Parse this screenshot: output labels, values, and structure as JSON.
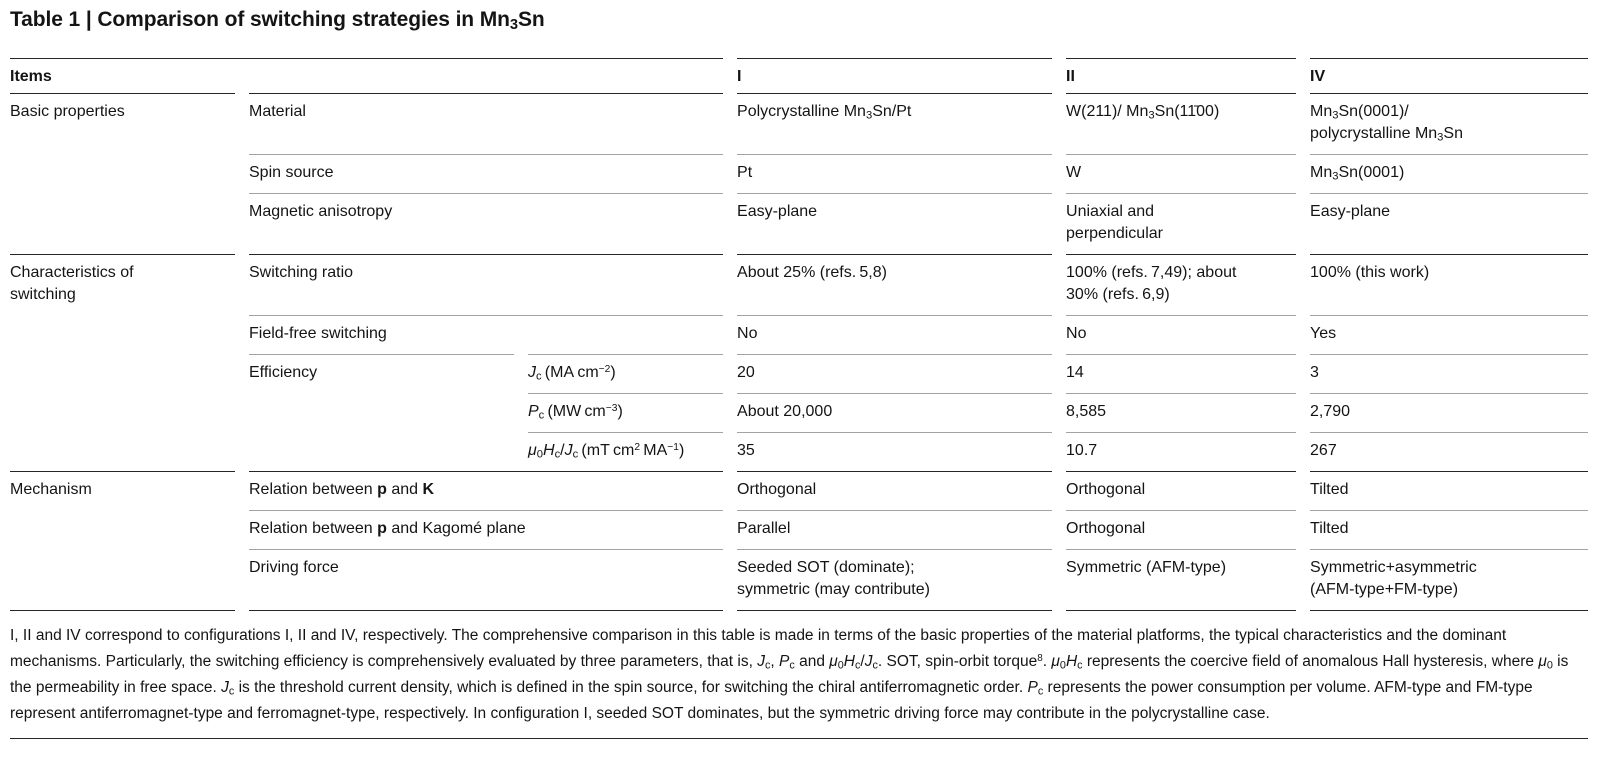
{
  "title": {
    "html": "Table 1 | Comparison of switching strategies in Mn<sub>3</sub>Sn"
  },
  "table": {
    "header": {
      "items": "Items",
      "col_I": "I",
      "col_II": "II",
      "col_IV": "IV"
    },
    "rows": [
      {
        "group": "Basic properties",
        "label": "Material",
        "values": [
          "Polycrystalline Mn<sub>3</sub>Sn/Pt",
          "W(211)/ Mn<sub>3</sub>Sn(11̄00)",
          "Mn<sub>3</sub>Sn(0001)/<br>polycrystalline Mn<sub>3</sub>Sn"
        ]
      },
      {
        "label": "Spin source",
        "values": [
          "Pt",
          "W",
          "Mn<sub>3</sub>Sn(0001)"
        ]
      },
      {
        "label": "Magnetic anisotropy",
        "values": [
          "Easy-plane",
          "Uniaxial and<br>perpendicular",
          "Easy-plane"
        ]
      },
      {
        "group": "Characteristics of<br>switching",
        "label": "Switching ratio",
        "values": [
          "About 25% (refs. 5,8)",
          "100% (refs. 7,49); about<br>30% (refs. 6,9)",
          "100% (this work)"
        ]
      },
      {
        "label": "Field-free switching",
        "values": [
          "No",
          "No",
          "Yes"
        ]
      },
      {
        "label": "Efficiency",
        "param": "<i>J</i><sub>c</sub> (MA cm<sup>−2</sup>)",
        "values": [
          "20",
          "14",
          "3"
        ]
      },
      {
        "param": "<i>P</i><sub>c</sub> (MW cm<sup>−3</sup>)",
        "values": [
          "About 20,000",
          "8,585",
          "2,790"
        ]
      },
      {
        "param": "<i>μ</i><sub>0</sub><i>H</i><sub>c</sub>/<i>J</i><sub>c</sub> (mT cm<sup>2</sup> MA<sup>−1</sup>)",
        "values": [
          "35",
          "10.7",
          "267"
        ]
      },
      {
        "group": "Mechanism",
        "label": "Relation between <b>p</b> and <b>K</b>",
        "values": [
          "Orthogonal",
          "Orthogonal",
          "Tilted"
        ]
      },
      {
        "label": "Relation between <b>p</b> and Kagomé plane",
        "values": [
          "Parallel",
          "Orthogonal",
          "Tilted"
        ]
      },
      {
        "label": "Driving force",
        "values": [
          "Seeded SOT (dominate);<br>symmetric (may contribute)",
          "Symmetric (AFM-type)",
          "Symmetric+asymmetric<br>(AFM-type+FM-type)"
        ]
      }
    ]
  },
  "footnote": {
    "html": "I, II and IV correspond to configurations I, II and IV, respectively. The comprehensive comparison in this table is made in terms of the basic properties of the material platforms, the typical characteristics and the dominant mechanisms. Particularly, the switching efficiency is comprehensively evaluated by three parameters, that is, <i>J</i><sub>c</sub>, <i>P</i><sub>c</sub> and <i>μ</i><sub>0</sub><i>H</i><sub>c</sub>/<i>J</i><sub>c</sub>. SOT, spin-orbit torque<sup>8</sup>. <i>μ</i><sub>0</sub><i>H</i><sub>c</sub> represents the coercive field of anomalous Hall hysteresis, where <i>μ</i><sub>0</sub> is the permeability in free space. <i>J</i><sub>c</sub> is the threshold current density, which is defined in the spin source, for switching the chiral antiferromagnetic order. <i>P</i><sub>c</sub> represents the power consumption per volume. AFM-type and FM-type represent antiferromagnet-type and ferromagnet-type, respectively. In configuration I, seeded SOT dominates, but the symmetric driving force may contribute in the polycrystalline case."
  }
}
